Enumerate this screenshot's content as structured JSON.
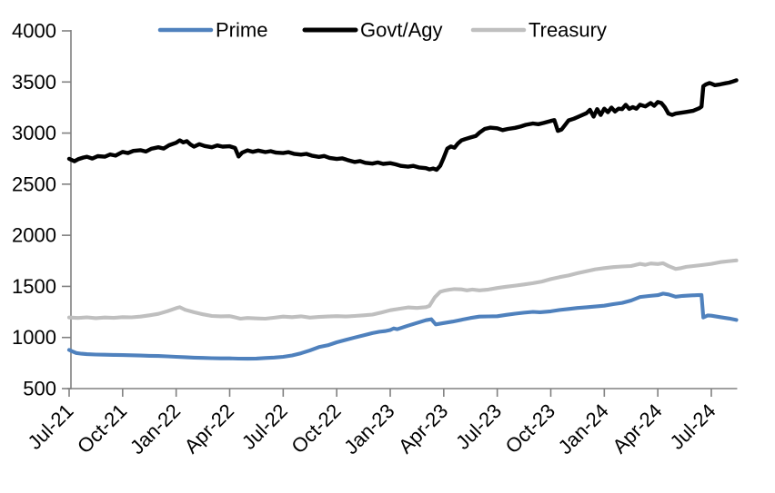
{
  "chart_data": {
    "type": "line",
    "legend_position": "top",
    "grid": false,
    "y_axis": {
      "min": 500,
      "max": 4000,
      "tick_step": 500,
      "ticks": [
        4000,
        3500,
        3000,
        2500,
        2000,
        1500,
        1000,
        500
      ]
    },
    "x_axis": {
      "unit": "months-since-Jul-2021",
      "tick_months": [
        0,
        3,
        6,
        9,
        12,
        15,
        18,
        21,
        24,
        27,
        30,
        33,
        36
      ],
      "tick_labels": [
        "Jul-21",
        "Oct-21",
        "Jan-22",
        "Apr-22",
        "Jul-22",
        "Oct-22",
        "Jan-23",
        "Apr-23",
        "Jul-23",
        "Oct-23",
        "Jan-24",
        "Apr-24",
        "Jul-24"
      ],
      "data_end_month": 37.4
    },
    "axis_color": "#808080",
    "series": [
      {
        "name": "Prime",
        "color": "#4F81BD",
        "points": [
          [
            0,
            878
          ],
          [
            0.2,
            862
          ],
          [
            0.4,
            848
          ],
          [
            0.7,
            841
          ],
          [
            1,
            837
          ],
          [
            1.5,
            833
          ],
          [
            2,
            831
          ],
          [
            2.5,
            830
          ],
          [
            3,
            828
          ],
          [
            3.5,
            826
          ],
          [
            4,
            823
          ],
          [
            4.5,
            821
          ],
          [
            5,
            819
          ],
          [
            5.5,
            815
          ],
          [
            6,
            811
          ],
          [
            6.5,
            807
          ],
          [
            7,
            803
          ],
          [
            7.5,
            800
          ],
          [
            8,
            798
          ],
          [
            8.5,
            796
          ],
          [
            9,
            796
          ],
          [
            9.5,
            793
          ],
          [
            10,
            792
          ],
          [
            10.5,
            794
          ],
          [
            11,
            799
          ],
          [
            11.5,
            804
          ],
          [
            12,
            811
          ],
          [
            12.5,
            824
          ],
          [
            13,
            846
          ],
          [
            13.5,
            874
          ],
          [
            14,
            906
          ],
          [
            14.5,
            924
          ],
          [
            15,
            953
          ],
          [
            15.5,
            976
          ],
          [
            16,
            999
          ],
          [
            16.5,
            1021
          ],
          [
            17,
            1043
          ],
          [
            17.4,
            1056
          ],
          [
            17.7,
            1062
          ],
          [
            18,
            1073
          ],
          [
            18.2,
            1089
          ],
          [
            18.4,
            1081
          ],
          [
            19,
            1116
          ],
          [
            19.5,
            1142
          ],
          [
            20,
            1169
          ],
          [
            20.3,
            1179
          ],
          [
            20.55,
            1128
          ],
          [
            21,
            1141
          ],
          [
            21.5,
            1156
          ],
          [
            22,
            1173
          ],
          [
            22.5,
            1191
          ],
          [
            23,
            1204
          ],
          [
            23.5,
            1206
          ],
          [
            24,
            1208
          ],
          [
            24.5,
            1221
          ],
          [
            25,
            1233
          ],
          [
            25.5,
            1243
          ],
          [
            26,
            1251
          ],
          [
            26.4,
            1247
          ],
          [
            27,
            1256
          ],
          [
            27.5,
            1269
          ],
          [
            28,
            1279
          ],
          [
            28.5,
            1289
          ],
          [
            29,
            1296
          ],
          [
            29.5,
            1303
          ],
          [
            30,
            1311
          ],
          [
            30.5,
            1326
          ],
          [
            31,
            1339
          ],
          [
            31.5,
            1362
          ],
          [
            32,
            1396
          ],
          [
            32.5,
            1406
          ],
          [
            33,
            1414
          ],
          [
            33.3,
            1429
          ],
          [
            33.6,
            1421
          ],
          [
            34,
            1399
          ],
          [
            34.4,
            1407
          ],
          [
            34.8,
            1411
          ],
          [
            35.2,
            1414
          ],
          [
            35.45,
            1416
          ],
          [
            35.55,
            1196
          ],
          [
            35.8,
            1216
          ],
          [
            36,
            1213
          ],
          [
            36.5,
            1199
          ],
          [
            37,
            1186
          ],
          [
            37.4,
            1172
          ]
        ]
      },
      {
        "name": "Govt/Agy",
        "color": "#000000",
        "points": [
          [
            0,
            2748
          ],
          [
            0.3,
            2724
          ],
          [
            0.5,
            2744
          ],
          [
            0.8,
            2761
          ],
          [
            1,
            2768
          ],
          [
            1.3,
            2751
          ],
          [
            1.6,
            2774
          ],
          [
            2,
            2769
          ],
          [
            2.3,
            2791
          ],
          [
            2.6,
            2779
          ],
          [
            3,
            2816
          ],
          [
            3.3,
            2804
          ],
          [
            3.6,
            2826
          ],
          [
            4,
            2833
          ],
          [
            4.3,
            2819
          ],
          [
            4.6,
            2846
          ],
          [
            5,
            2861
          ],
          [
            5.3,
            2849
          ],
          [
            5.6,
            2881
          ],
          [
            6,
            2906
          ],
          [
            6.2,
            2929
          ],
          [
            6.4,
            2909
          ],
          [
            6.6,
            2921
          ],
          [
            6.8,
            2889
          ],
          [
            7,
            2867
          ],
          [
            7.3,
            2891
          ],
          [
            7.6,
            2874
          ],
          [
            8,
            2861
          ],
          [
            8.3,
            2879
          ],
          [
            8.6,
            2867
          ],
          [
            9,
            2871
          ],
          [
            9.3,
            2854
          ],
          [
            9.5,
            2771
          ],
          [
            9.7,
            2809
          ],
          [
            10,
            2831
          ],
          [
            10.3,
            2817
          ],
          [
            10.6,
            2829
          ],
          [
            11,
            2814
          ],
          [
            11.3,
            2823
          ],
          [
            11.6,
            2809
          ],
          [
            12,
            2804
          ],
          [
            12.3,
            2813
          ],
          [
            12.6,
            2797
          ],
          [
            13,
            2789
          ],
          [
            13.3,
            2796
          ],
          [
            13.6,
            2779
          ],
          [
            14,
            2767
          ],
          [
            14.3,
            2776
          ],
          [
            14.6,
            2757
          ],
          [
            15,
            2747
          ],
          [
            15.3,
            2753
          ],
          [
            15.6,
            2737
          ],
          [
            16,
            2717
          ],
          [
            16.3,
            2726
          ],
          [
            16.6,
            2709
          ],
          [
            17,
            2701
          ],
          [
            17.3,
            2713
          ],
          [
            17.6,
            2699
          ],
          [
            18,
            2706
          ],
          [
            18.3,
            2694
          ],
          [
            18.6,
            2679
          ],
          [
            19,
            2671
          ],
          [
            19.3,
            2679
          ],
          [
            19.6,
            2664
          ],
          [
            20,
            2657
          ],
          [
            20.2,
            2644
          ],
          [
            20.4,
            2653
          ],
          [
            20.6,
            2641
          ],
          [
            20.8,
            2679
          ],
          [
            21,
            2759
          ],
          [
            21.2,
            2849
          ],
          [
            21.4,
            2869
          ],
          [
            21.6,
            2857
          ],
          [
            21.8,
            2899
          ],
          [
            22,
            2929
          ],
          [
            22.2,
            2941
          ],
          [
            22.5,
            2957
          ],
          [
            22.8,
            2971
          ],
          [
            23,
            3004
          ],
          [
            23.3,
            3041
          ],
          [
            23.6,
            3053
          ],
          [
            24,
            3047
          ],
          [
            24.3,
            3029
          ],
          [
            24.6,
            3041
          ],
          [
            25,
            3051
          ],
          [
            25.3,
            3064
          ],
          [
            25.6,
            3081
          ],
          [
            26,
            3094
          ],
          [
            26.3,
            3087
          ],
          [
            26.6,
            3099
          ],
          [
            27,
            3119
          ],
          [
            27.2,
            3127
          ],
          [
            27.4,
            3021
          ],
          [
            27.6,
            3034
          ],
          [
            27.8,
            3079
          ],
          [
            28,
            3124
          ],
          [
            28.3,
            3141
          ],
          [
            28.6,
            3164
          ],
          [
            29,
            3194
          ],
          [
            29.2,
            3227
          ],
          [
            29.4,
            3161
          ],
          [
            29.6,
            3234
          ],
          [
            29.8,
            3177
          ],
          [
            30,
            3239
          ],
          [
            30.2,
            3204
          ],
          [
            30.4,
            3249
          ],
          [
            30.6,
            3211
          ],
          [
            30.8,
            3239
          ],
          [
            31,
            3234
          ],
          [
            31.2,
            3277
          ],
          [
            31.4,
            3237
          ],
          [
            31.6,
            3254
          ],
          [
            31.8,
            3239
          ],
          [
            32,
            3277
          ],
          [
            32.3,
            3261
          ],
          [
            32.6,
            3294
          ],
          [
            32.8,
            3267
          ],
          [
            33,
            3304
          ],
          [
            33.2,
            3294
          ],
          [
            33.4,
            3251
          ],
          [
            33.6,
            3191
          ],
          [
            33.8,
            3177
          ],
          [
            34,
            3191
          ],
          [
            34.3,
            3199
          ],
          [
            34.6,
            3207
          ],
          [
            35,
            3219
          ],
          [
            35.3,
            3241
          ],
          [
            35.45,
            3259
          ],
          [
            35.55,
            3459
          ],
          [
            35.7,
            3477
          ],
          [
            35.9,
            3489
          ],
          [
            36,
            3484
          ],
          [
            36.2,
            3469
          ],
          [
            36.5,
            3477
          ],
          [
            36.8,
            3487
          ],
          [
            37,
            3494
          ],
          [
            37.2,
            3504
          ],
          [
            37.4,
            3517
          ]
        ]
      },
      {
        "name": "Treasury",
        "color": "#BFBFBF",
        "points": [
          [
            0,
            1196
          ],
          [
            0.5,
            1191
          ],
          [
            1,
            1197
          ],
          [
            1.5,
            1189
          ],
          [
            2,
            1196
          ],
          [
            2.5,
            1192
          ],
          [
            3,
            1199
          ],
          [
            3.5,
            1197
          ],
          [
            4,
            1204
          ],
          [
            4.5,
            1217
          ],
          [
            5,
            1231
          ],
          [
            5.5,
            1257
          ],
          [
            6,
            1287
          ],
          [
            6.2,
            1297
          ],
          [
            6.5,
            1271
          ],
          [
            7,
            1247
          ],
          [
            7.5,
            1227
          ],
          [
            8,
            1211
          ],
          [
            8.5,
            1207
          ],
          [
            9,
            1209
          ],
          [
            9.3,
            1197
          ],
          [
            9.6,
            1184
          ],
          [
            10,
            1191
          ],
          [
            10.5,
            1187
          ],
          [
            11,
            1184
          ],
          [
            11.5,
            1194
          ],
          [
            12,
            1204
          ],
          [
            12.5,
            1199
          ],
          [
            13,
            1207
          ],
          [
            13.5,
            1195
          ],
          [
            14,
            1201
          ],
          [
            14.5,
            1205
          ],
          [
            15,
            1209
          ],
          [
            15.5,
            1205
          ],
          [
            16,
            1211
          ],
          [
            16.5,
            1217
          ],
          [
            17,
            1224
          ],
          [
            17.5,
            1244
          ],
          [
            18,
            1267
          ],
          [
            18.5,
            1281
          ],
          [
            19,
            1294
          ],
          [
            19.5,
            1289
          ],
          [
            20,
            1297
          ],
          [
            20.2,
            1309
          ],
          [
            20.5,
            1394
          ],
          [
            20.8,
            1447
          ],
          [
            21,
            1457
          ],
          [
            21.3,
            1467
          ],
          [
            21.6,
            1474
          ],
          [
            22,
            1471
          ],
          [
            22.3,
            1461
          ],
          [
            22.6,
            1469
          ],
          [
            23,
            1461
          ],
          [
            23.5,
            1469
          ],
          [
            24,
            1484
          ],
          [
            24.5,
            1497
          ],
          [
            25,
            1507
          ],
          [
            25.5,
            1519
          ],
          [
            26,
            1531
          ],
          [
            26.5,
            1547
          ],
          [
            27,
            1571
          ],
          [
            27.5,
            1591
          ],
          [
            28,
            1607
          ],
          [
            28.5,
            1629
          ],
          [
            29,
            1649
          ],
          [
            29.5,
            1667
          ],
          [
            30,
            1679
          ],
          [
            30.5,
            1689
          ],
          [
            31,
            1695
          ],
          [
            31.5,
            1699
          ],
          [
            32,
            1721
          ],
          [
            32.3,
            1711
          ],
          [
            32.6,
            1724
          ],
          [
            33,
            1719
          ],
          [
            33.3,
            1727
          ],
          [
            33.6,
            1699
          ],
          [
            34,
            1671
          ],
          [
            34.3,
            1679
          ],
          [
            34.6,
            1691
          ],
          [
            35,
            1699
          ],
          [
            35.5,
            1709
          ],
          [
            36,
            1721
          ],
          [
            36.5,
            1737
          ],
          [
            37,
            1747
          ],
          [
            37.4,
            1754
          ]
        ]
      }
    ]
  }
}
